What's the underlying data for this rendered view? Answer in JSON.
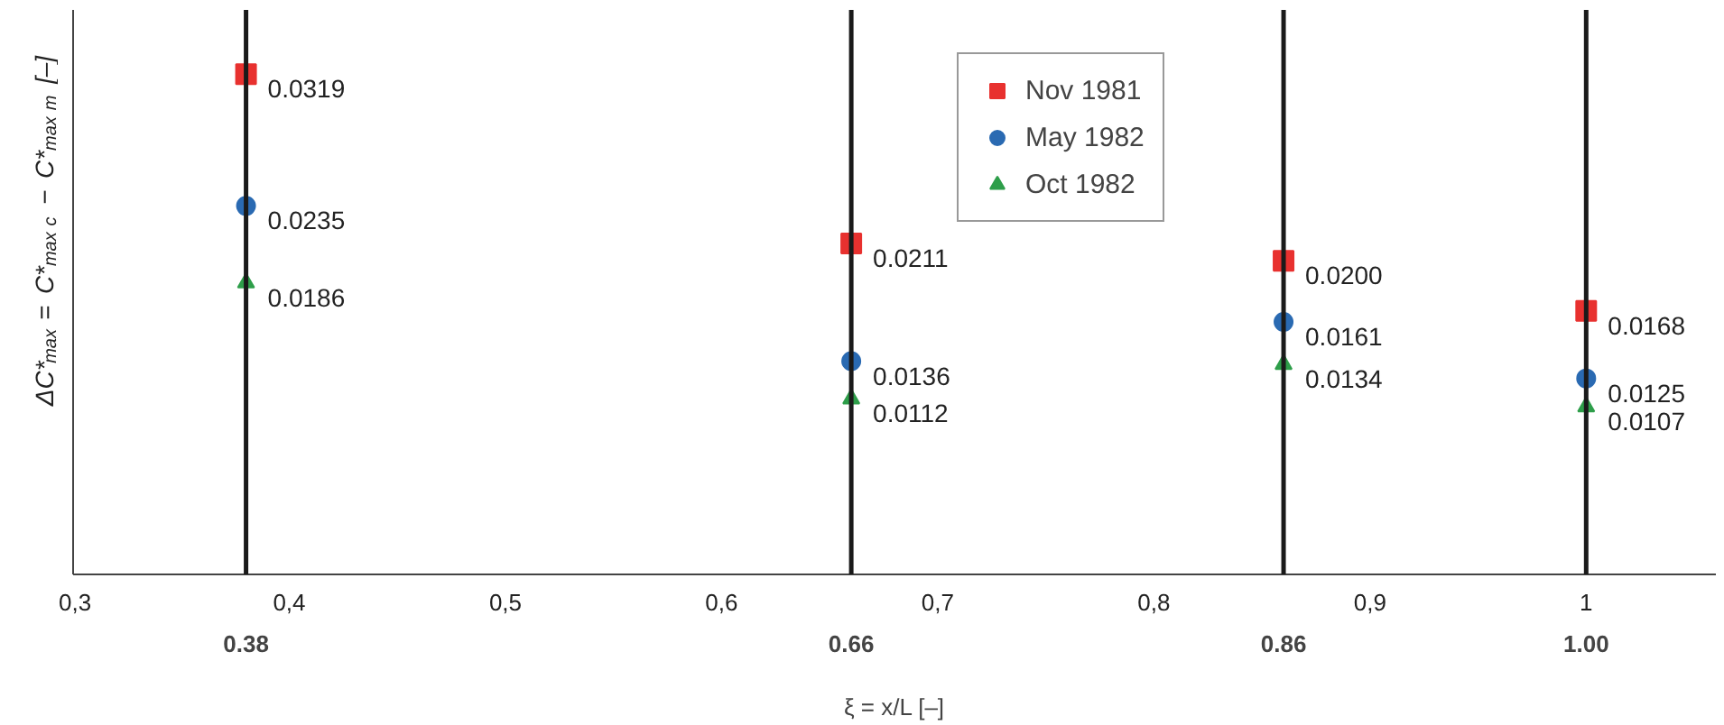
{
  "chart_data": {
    "type": "scatter",
    "xlabel": "ξ = x/L [–]",
    "ylabel": "ΔC*$_{max}$ = C*$_{max c}$ − C*$_{max m}$ [–]",
    "x": [
      0.38,
      0.66,
      0.86,
      1.0
    ],
    "series": [
      {
        "name": "Nov 1981",
        "color": "#e8312f",
        "marker": "square",
        "values": [
          0.0319,
          0.0211,
          0.02,
          0.0168
        ],
        "value_labels": [
          "0.0319",
          "0.0211",
          "0.0200",
          "0.0168"
        ]
      },
      {
        "name": "May 1982",
        "color": "#2a6ab2",
        "marker": "circle",
        "values": [
          0.0235,
          0.0136,
          0.0161,
          0.0125
        ],
        "value_labels": [
          "0.0235",
          "0.0136",
          "0.0161",
          "0.0125"
        ]
      },
      {
        "name": "Oct 1982",
        "color": "#2e9e4a",
        "marker": "triangle",
        "values": [
          0.0186,
          0.0112,
          0.0134,
          0.0107
        ],
        "value_labels": [
          "0.0186",
          "0.0112",
          "0.0134",
          "0.0107"
        ]
      }
    ],
    "xlim": [
      0.3,
      1.06
    ],
    "ylim": [
      0,
      0.036
    ],
    "xticks": [
      {
        "value": 0.3,
        "label": "0,3"
      },
      {
        "value": 0.4,
        "label": "0,4"
      },
      {
        "value": 0.5,
        "label": "0,5"
      },
      {
        "value": 0.6,
        "label": "0,6"
      },
      {
        "value": 0.7,
        "label": "0,7"
      },
      {
        "value": 0.8,
        "label": "0,8"
      },
      {
        "value": 0.9,
        "label": "0,9"
      },
      {
        "value": 1.0,
        "label": "1"
      }
    ],
    "ref_lines": [
      {
        "axis": "x",
        "value": 0.38,
        "label": "0.38",
        "color": "#1a1a1a"
      },
      {
        "axis": "x",
        "value": 0.66,
        "label": "0.66",
        "color": "#1a1a1a"
      },
      {
        "axis": "x",
        "value": 0.86,
        "label": "0.86",
        "color": "#1a1a1a"
      },
      {
        "axis": "x",
        "value": 1.0,
        "label": "1.00",
        "color": "#1a1a1a"
      }
    ],
    "tick_labels": "x",
    "grid": false,
    "legend": "top"
  }
}
